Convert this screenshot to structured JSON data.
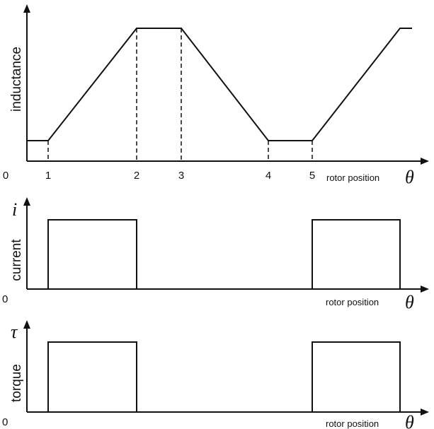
{
  "chart_data": [
    {
      "type": "line",
      "title": "",
      "ylabel": "inductance",
      "xlabel": "rotor position",
      "x_symbol": "θ",
      "x_tick_labels": [
        "0",
        "1",
        "2",
        "3",
        "4",
        "5"
      ],
      "x": [
        0,
        1,
        2,
        3,
        4,
        5,
        6,
        7
      ],
      "values": [
        0.15,
        0.15,
        1.0,
        1.0,
        0.15,
        0.15,
        1.0,
        1.0
      ],
      "dashed_guides_at": [
        1,
        2,
        3,
        4,
        5
      ],
      "grid": false,
      "legend": "none"
    },
    {
      "type": "line",
      "title": "",
      "ylabel": "current",
      "y_symbol": "i",
      "xlabel": "rotor position",
      "x_symbol": "θ",
      "x_tick_labels": [
        "0"
      ],
      "pulses": [
        [
          1,
          2
        ],
        [
          5,
          6
        ]
      ],
      "grid": false,
      "legend": "none"
    },
    {
      "type": "line",
      "title": "",
      "ylabel": "torque",
      "y_symbol": "τ",
      "xlabel": "rotor position",
      "x_symbol": "θ",
      "x_tick_labels": [
        "0"
      ],
      "pulses": [
        [
          1,
          2
        ],
        [
          5,
          6
        ]
      ],
      "grid": false,
      "legend": "none"
    }
  ]
}
